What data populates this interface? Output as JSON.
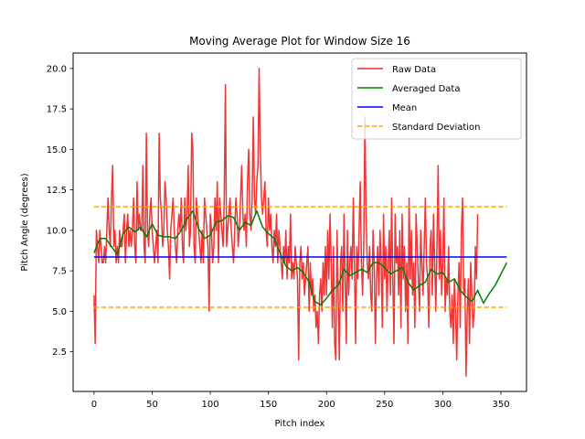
{
  "chart_data": {
    "type": "line",
    "title": "Moving Average Plot for Window Size 16",
    "xlabel": "Pitch index",
    "ylabel": "Pitch Angle (degrees)",
    "xlim": [
      -18,
      372
    ],
    "ylim": [
      0.05,
      20.95
    ],
    "xticks": [
      0,
      50,
      100,
      150,
      200,
      250,
      300,
      350
    ],
    "yticks": [
      2.5,
      5.0,
      7.5,
      10.0,
      12.5,
      15.0,
      17.5,
      20.0
    ],
    "ytick_labels": [
      "2.5",
      "5.0",
      "7.5",
      "10.0",
      "12.5",
      "15.0",
      "17.5",
      "20.0"
    ],
    "grid": false,
    "legend_position": "top-right",
    "series": [
      {
        "name": "Raw Data",
        "color": "#ee2a2a",
        "style": "solid",
        "x_start": 0,
        "x_step": 1,
        "values": [
          6,
          3,
          10,
          9,
          8,
          10,
          9,
          8,
          8,
          9,
          8,
          10,
          12,
          10,
          9,
          12,
          14,
          9,
          10,
          8,
          9,
          8,
          10,
          9,
          9,
          10,
          11,
          8,
          10,
          11,
          9,
          10,
          9,
          10,
          12,
          9,
          8,
          13,
          10,
          11,
          10,
          10,
          14,
          9,
          8,
          16,
          10,
          9,
          11,
          12,
          10,
          9,
          8,
          9,
          10,
          8,
          16,
          12,
          11,
          9,
          10,
          13,
          12,
          10,
          9,
          7,
          10,
          11,
          12,
          10,
          9,
          8,
          10,
          11,
          10,
          12,
          9,
          8,
          12,
          10,
          11,
          14,
          9,
          10,
          16,
          15,
          9,
          8,
          12,
          11,
          10,
          9,
          8,
          10,
          8,
          12,
          11,
          10,
          9,
          5,
          11,
          10,
          8,
          9,
          12,
          10,
          13,
          8,
          12,
          11,
          10,
          9,
          12,
          19,
          9,
          10,
          11,
          12,
          10,
          9,
          8,
          10,
          12,
          11,
          9,
          10,
          12,
          14,
          11,
          10,
          11,
          9,
          13,
          15,
          11,
          10,
          12,
          17,
          12,
          11,
          13,
          14,
          20,
          15,
          12,
          11,
          12,
          13,
          10,
          9,
          12,
          10,
          11,
          9,
          8,
          10,
          9,
          11,
          8,
          10,
          9,
          8,
          7,
          9,
          8,
          10,
          7,
          9,
          8,
          11,
          7,
          8,
          7,
          9,
          8,
          7,
          2,
          8,
          9,
          7,
          8,
          6,
          7,
          8,
          9,
          5,
          8,
          6,
          7,
          5,
          6,
          4,
          5,
          3,
          6,
          7,
          5,
          8,
          6,
          9,
          6,
          10,
          7,
          11,
          8,
          4,
          9,
          3,
          2,
          10,
          6,
          2,
          8,
          9,
          5,
          11,
          7,
          3,
          10,
          6,
          8,
          9,
          7,
          12,
          8,
          3,
          9,
          7,
          10,
          13,
          8,
          6,
          9,
          17,
          11,
          8,
          7,
          9,
          6,
          5,
          10,
          8,
          3,
          7,
          9,
          6,
          10,
          8,
          4,
          11,
          7,
          9,
          5,
          8,
          10,
          6,
          12,
          7,
          3,
          11,
          8,
          9,
          6,
          10,
          4,
          11,
          7,
          9,
          5,
          8,
          3,
          12,
          7,
          10,
          6,
          8,
          4,
          11,
          9,
          7,
          5,
          10,
          8,
          6,
          9,
          12,
          8,
          7,
          4,
          9,
          10,
          6,
          11,
          8,
          5,
          9,
          14,
          7,
          10,
          6,
          8,
          12,
          5,
          7,
          6,
          9,
          5,
          4,
          6,
          3,
          7,
          5,
          2,
          6,
          8,
          4,
          10,
          12,
          6,
          7,
          1,
          5,
          7,
          3,
          8,
          6,
          4,
          5,
          9,
          7,
          11
        ]
      },
      {
        "name": "Averaged Data",
        "color": "#008000",
        "style": "solid",
        "x_start": 0,
        "x_step": 5,
        "values": [
          8.6,
          9.5,
          9.5,
          9.0,
          8.5,
          9.8,
          10.2,
          9.9,
          10.2,
          9.6,
          10.4,
          9.7,
          9.6,
          9.6,
          9.5,
          10.0,
          10.7,
          11.2,
          10.1,
          9.5,
          9.7,
          10.5,
          10.6,
          10.9,
          10.8,
          10.0,
          10.5,
          10.3,
          11.2,
          10.2,
          9.8,
          9.5,
          8.6,
          7.8,
          7.5,
          7.7,
          7.4,
          6.8,
          5.6,
          5.4,
          5.8,
          6.3,
          6.6,
          7.6,
          7.2,
          7.4,
          7.6,
          7.4,
          8.0,
          8.0,
          7.7,
          7.3,
          7.5,
          7.7,
          6.8,
          6.3,
          6.6,
          6.8,
          7.6,
          7.3,
          7.4,
          6.8,
          7.0,
          6.3,
          5.9,
          5.6,
          6.3,
          5.5,
          6.1,
          6.6,
          7.3,
          8.0
        ]
      },
      {
        "name": "Mean",
        "color": "#0000ff",
        "style": "solid",
        "x": [
          0,
          355
        ],
        "values": [
          8.35,
          8.35
        ]
      },
      {
        "name": "Standard Deviation",
        "color": "#ffa500",
        "style": "dashed",
        "lines": [
          {
            "x": [
              0,
              355
            ],
            "values": [
              11.45,
              11.45
            ]
          },
          {
            "x": [
              0,
              355
            ],
            "values": [
              5.25,
              5.25
            ]
          }
        ]
      }
    ]
  }
}
